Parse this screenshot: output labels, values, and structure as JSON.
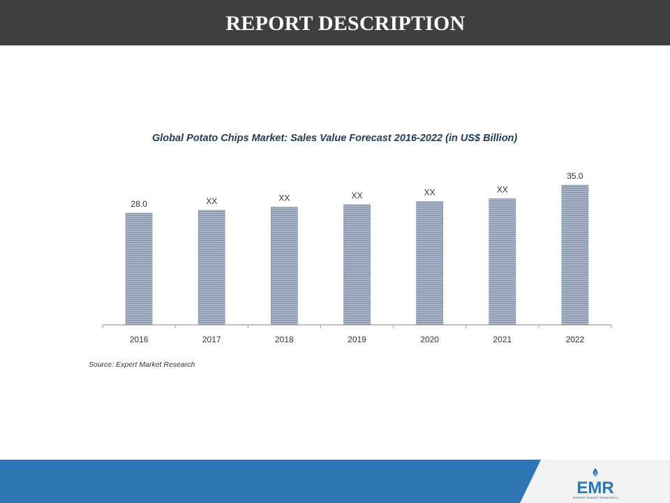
{
  "header": {
    "title": "REPORT DESCRIPTION"
  },
  "chart_data": {
    "type": "bar",
    "title": "Global Potato Chips Market: Sales Value Forecast 2016-2022 (in US$ Billion)",
    "categories": [
      "2016",
      "2017",
      "2018",
      "2019",
      "2020",
      "2021",
      "2022"
    ],
    "values": [
      28.0,
      28.7,
      29.5,
      30.1,
      30.9,
      31.6,
      35.0
    ],
    "data_labels": [
      "28.0",
      "XX",
      "XX",
      "XX",
      "XX",
      "XX",
      "35.0"
    ],
    "xlabel": "",
    "ylabel": "",
    "ylim": [
      0,
      35.0
    ],
    "grid": false,
    "legend": "none",
    "bar_color": "#a9b6c9",
    "bar_line_color": "#7f8da3"
  },
  "source": "Source: Expert Market Research",
  "footer": {
    "band_color": "#2e75b6",
    "logo_text": "EMR",
    "logo_subtext": "EXPERT MARKET RESEARCH"
  }
}
